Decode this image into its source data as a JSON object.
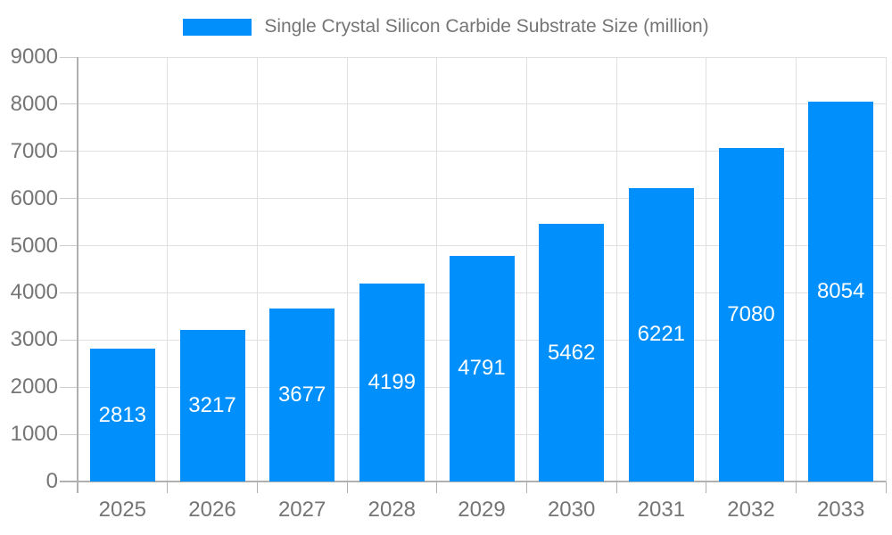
{
  "legend": {
    "label": "Single Crystal Silicon Carbide Substrate Size (million)",
    "swatch_color": "#008ffb"
  },
  "chart_data": {
    "type": "bar",
    "title": "",
    "xlabel": "",
    "ylabel": "",
    "categories": [
      "2025",
      "2026",
      "2027",
      "2028",
      "2029",
      "2030",
      "2031",
      "2032",
      "2033"
    ],
    "series": [
      {
        "name": "Single Crystal Silicon Carbide Substrate Size (million)",
        "values": [
          2813,
          3217,
          3677,
          4199,
          4791,
          5462,
          6221,
          7080,
          8054
        ]
      }
    ],
    "value_labels": [
      "2813",
      "3217",
      "3677",
      "4199",
      "4791",
      "5462",
      "6221",
      "7080",
      "8054"
    ],
    "ytick_labels": [
      "0",
      "1000",
      "2000",
      "3000",
      "4000",
      "5000",
      "6000",
      "7000",
      "8000",
      "9000"
    ],
    "ylim": [
      0,
      9000
    ],
    "ytick_step": 1000,
    "grid": true,
    "legend_position": "top"
  },
  "colors": {
    "bar": "#008ffb",
    "grid": "#e0e0e0",
    "axis": "#b0b0b0",
    "tick": "#cccccc",
    "label_text": "#757575",
    "value_text": "#ffffff",
    "background": "#ffffff"
  }
}
